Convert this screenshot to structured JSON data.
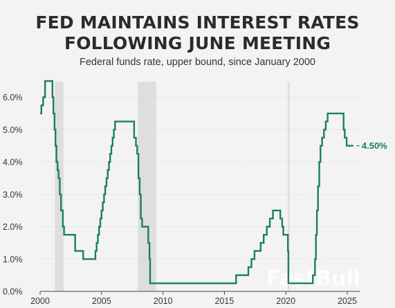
{
  "header": {
    "title_line1": "FED MAINTAINS INTEREST RATES",
    "title_line2": "FOLLOWING JUNE MEETING",
    "subtitle": "Federal funds rate, upper bound, since January 2000"
  },
  "watermark": "FastBull",
  "colors": {
    "line": "#1b7d66",
    "recession": "#dedede",
    "grid": "#d6d6d6",
    "text": "#333333"
  },
  "chart_data": {
    "type": "line",
    "title": "FED MAINTAINS INTEREST RATES FOLLOWING JUNE MEETING",
    "subtitle": "Federal funds rate, upper bound, since January 2000",
    "step": true,
    "x_ticks": [
      "2000",
      "2005",
      "2010",
      "2015",
      "2020",
      "2025"
    ],
    "y_ticks": [
      "0.0%",
      "1.0%",
      "2.0%",
      "3.0%",
      "4.0%",
      "5.0%",
      "6.0%"
    ],
    "xlim": [
      2000,
      2025.6
    ],
    "ylim": [
      0,
      6.5
    ],
    "grid": "horizontal",
    "end_label": "4.50%",
    "recessions": [
      [
        2001.2,
        2001.9
      ],
      [
        2007.95,
        2009.45
      ],
      [
        2020.15,
        2020.3
      ]
    ],
    "series": [
      {
        "x": [
          2000.0,
          2000.1,
          2000.25,
          2000.4,
          2001.0,
          2001.08,
          2001.17,
          2001.25,
          2001.33,
          2001.42,
          2001.5,
          2001.6,
          2001.7,
          2001.85,
          2001.95,
          2002.85,
          2003.5,
          2004.5,
          2004.6,
          2004.7,
          2004.8,
          2004.9,
          2005.0,
          2005.1,
          2005.2,
          2005.3,
          2005.4,
          2005.5,
          2005.6,
          2005.7,
          2005.8,
          2005.9,
          2006.0,
          2006.1,
          2006.2,
          2006.3,
          2006.4,
          2006.5,
          2007.65,
          2007.8,
          2007.9,
          2008.0,
          2008.1,
          2008.2,
          2008.3,
          2008.8,
          2008.9,
          2008.95,
          2015.95,
          2016.95,
          2017.2,
          2017.45,
          2017.95,
          2018.2,
          2018.45,
          2018.7,
          2018.95,
          2019.55,
          2019.7,
          2019.8,
          2020.17,
          2020.21,
          2022.2,
          2022.37,
          2022.45,
          2022.53,
          2022.62,
          2022.72,
          2022.82,
          2022.95,
          2023.1,
          2023.25,
          2023.4,
          2023.55,
          2024.7,
          2024.8,
          2024.95,
          2025.5
        ],
        "y": [
          5.5,
          5.75,
          6.0,
          6.5,
          6.0,
          5.5,
          5.0,
          4.5,
          4.0,
          3.75,
          3.5,
          3.0,
          2.5,
          2.0,
          1.75,
          1.25,
          1.0,
          1.25,
          1.5,
          1.75,
          2.0,
          2.25,
          2.5,
          2.75,
          3.0,
          3.25,
          3.5,
          3.75,
          4.0,
          4.25,
          4.5,
          4.75,
          5.0,
          5.25,
          5.25,
          5.25,
          5.25,
          5.25,
          4.75,
          4.5,
          4.25,
          3.5,
          3.0,
          2.25,
          2.0,
          1.5,
          1.0,
          0.25,
          0.5,
          0.75,
          1.0,
          1.25,
          1.5,
          1.75,
          2.0,
          2.25,
          2.5,
          2.25,
          2.0,
          1.75,
          1.25,
          0.25,
          0.5,
          1.0,
          1.75,
          2.5,
          3.25,
          4.0,
          4.5,
          4.75,
          5.0,
          5.25,
          5.5,
          5.5,
          5.0,
          4.75,
          4.5,
          4.5
        ]
      }
    ]
  }
}
